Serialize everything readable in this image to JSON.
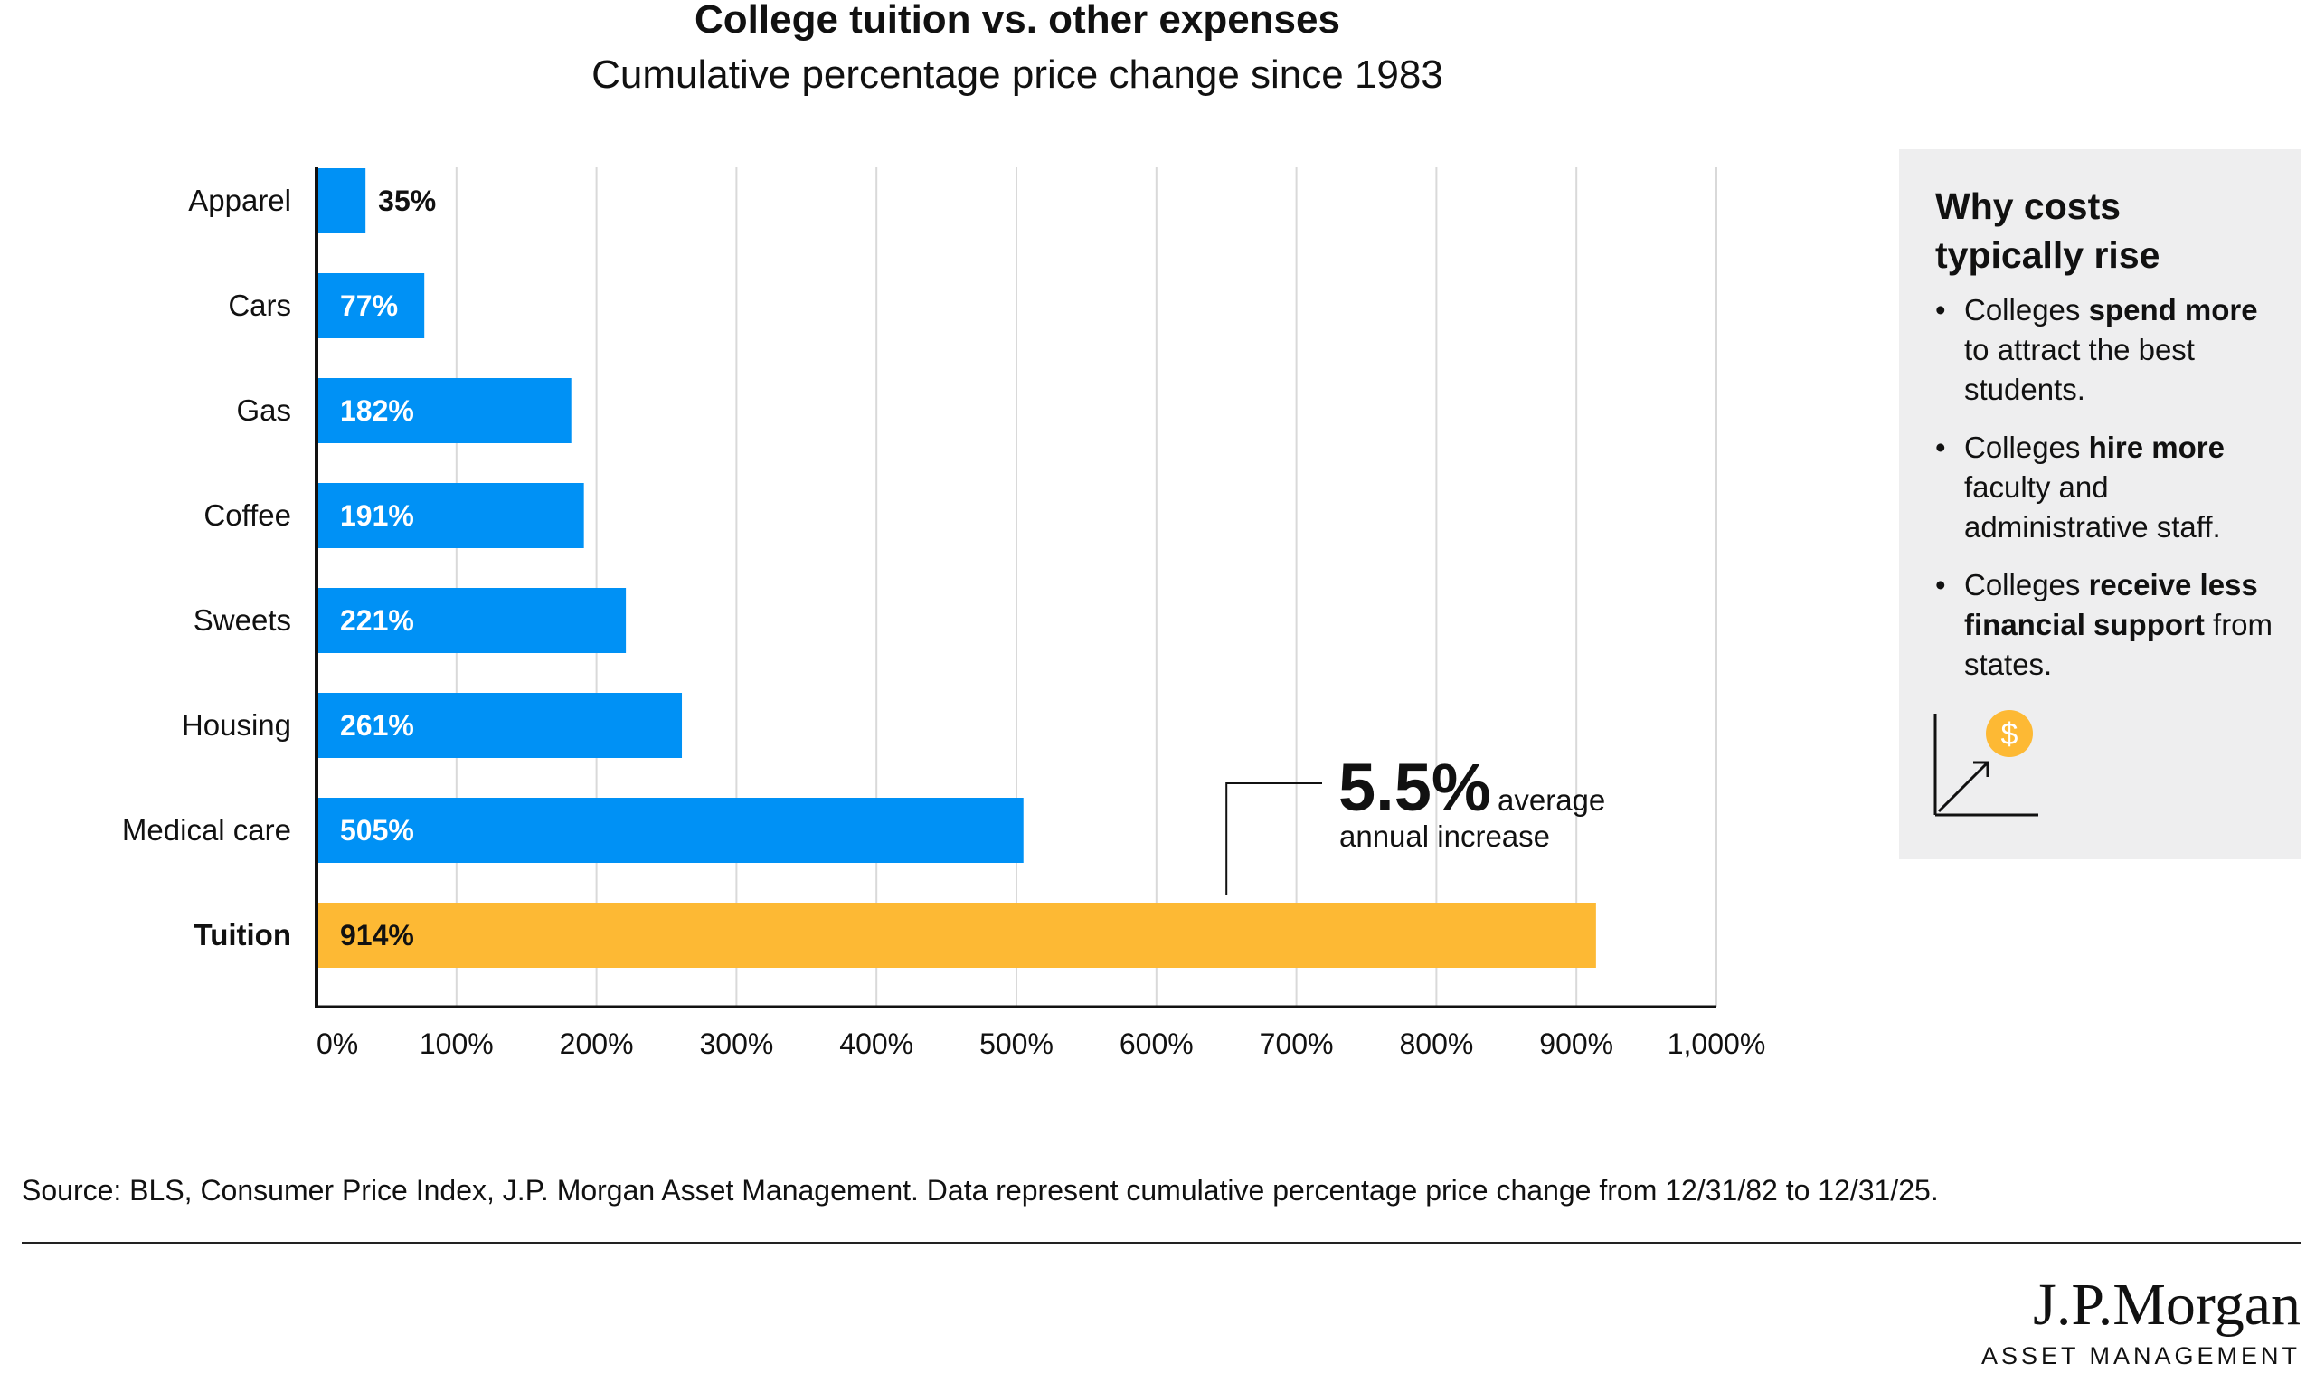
{
  "chart_data": {
    "type": "bar",
    "orientation": "horizontal",
    "title": "College tuition vs. other expenses",
    "subtitle": "Cumulative percentage price change since 1983",
    "categories": [
      "Apparel",
      "Cars",
      "Gas",
      "Coffee",
      "Sweets",
      "Housing",
      "Medical care",
      "Tuition"
    ],
    "values": [
      35,
      77,
      182,
      191,
      221,
      261,
      505,
      914
    ],
    "data_labels": [
      "35%",
      "77%",
      "182%",
      "191%",
      "221%",
      "261%",
      "505%",
      "914%"
    ],
    "highlight_category": "Tuition",
    "xlim": [
      0,
      1000
    ],
    "xticks": [
      0,
      100,
      200,
      300,
      400,
      500,
      600,
      700,
      800,
      900,
      1000
    ],
    "xtick_labels": [
      "0%",
      "100%",
      "200%",
      "300%",
      "400%",
      "500%",
      "600%",
      "700%",
      "800%",
      "900%",
      "1,000%"
    ],
    "grid": "vertical",
    "colors": {
      "bar": "#0091f5",
      "highlight": "#fdb934",
      "grid": "#d9d9d9",
      "axis": "#111111"
    },
    "annotation": {
      "value": "5.5%",
      "line1": "average",
      "line2": "annual increase",
      "anchor_x": 650
    }
  },
  "side_panel": {
    "title": "Why costs typically rise",
    "items": [
      {
        "pre": "Colleges ",
        "bold": "spend more",
        "post": " to attract the best students."
      },
      {
        "pre": "Colleges ",
        "bold": "hire more",
        "post": " faculty and administrative staff."
      },
      {
        "pre": "Colleges ",
        "bold": "receive less financial support",
        "post": " from states."
      }
    ],
    "icon": "rising-cost-dollar-icon"
  },
  "source": "Source: BLS, Consumer Price Index, J.P. Morgan Asset Management. Data represent cumulative percentage price change from 12/31/82 to 12/31/25.",
  "brand": {
    "name": "J.P.Morgan",
    "sub": "ASSET MANAGEMENT"
  }
}
